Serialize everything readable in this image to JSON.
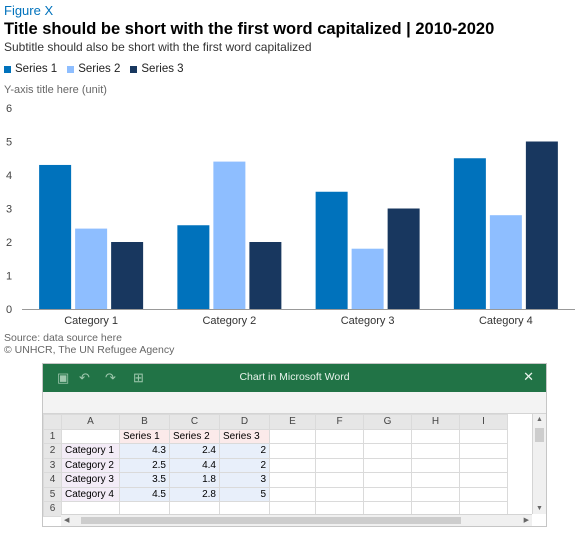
{
  "figure_label": "Figure X",
  "title": "Title should be short with the first word capitalized | 2010-2020",
  "subtitle": "Subtitle should also be short with the first word capitalized",
  "source_line1": "Source: data source here",
  "source_line2": "© UNHCR, The UN Refugee Agency",
  "colors": {
    "series1": "#0072bc",
    "series2": "#8ebeff",
    "series3": "#18375f",
    "accent": "#0072bc",
    "excel_green": "#217346"
  },
  "chart_data": {
    "type": "bar",
    "categories": [
      "Category 1",
      "Category 2",
      "Category 3",
      "Category 4"
    ],
    "series": [
      {
        "name": "Series 1",
        "values": [
          4.3,
          2.5,
          3.5,
          4.5
        ]
      },
      {
        "name": "Series 2",
        "values": [
          2.4,
          4.4,
          1.8,
          2.8
        ]
      },
      {
        "name": "Series 3",
        "values": [
          2,
          2,
          3,
          5
        ]
      }
    ],
    "ylabel": "Y-axis title here (unit)",
    "ylim": [
      0,
      6
    ],
    "yticks": [
      0,
      1,
      2,
      3,
      4,
      5,
      6
    ],
    "legend_position": "top-left",
    "grid": false
  },
  "excel": {
    "window_title": "Chart in Microsoft Word",
    "close_glyph": "✕",
    "columns": [
      "A",
      "B",
      "C",
      "D",
      "E",
      "F",
      "G",
      "H",
      "I"
    ],
    "rows": [
      {
        "num": "1",
        "cells": [
          "",
          "Series 1",
          "Series 2",
          "Series 3"
        ]
      },
      {
        "num": "2",
        "cells": [
          "Category 1",
          "4.3",
          "2.4",
          "2"
        ]
      },
      {
        "num": "3",
        "cells": [
          "Category 2",
          "2.5",
          "4.4",
          "2"
        ]
      },
      {
        "num": "4",
        "cells": [
          "Category 3",
          "3.5",
          "1.8",
          "3"
        ]
      },
      {
        "num": "5",
        "cells": [
          "Category 4",
          "4.5",
          "2.8",
          "5"
        ]
      },
      {
        "num": "6",
        "cells": [
          "",
          "",
          "",
          ""
        ]
      }
    ]
  }
}
